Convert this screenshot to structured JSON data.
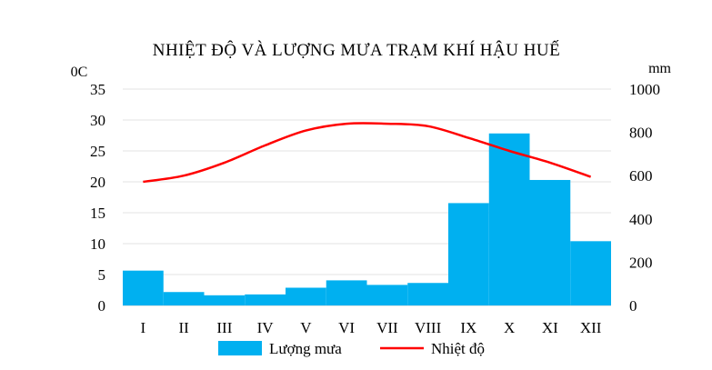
{
  "chart_data": {
    "type": "bar",
    "title": "NHIỆT ĐỘ VÀ LƯỢNG MƯA TRẠM KHÍ HẬU HUẾ",
    "categories": [
      "I",
      "II",
      "III",
      "IV",
      "V",
      "VI",
      "VII",
      "VIII",
      "IX",
      "X",
      "XI",
      "XII"
    ],
    "y_left": {
      "label": "0C",
      "ticks": [
        "0",
        "5",
        "10",
        "15",
        "20",
        "25",
        "30",
        "35"
      ],
      "range": [
        0,
        35
      ]
    },
    "y_right": {
      "label": "mm",
      "ticks": [
        "0",
        "200",
        "400",
        "600",
        "800",
        "1000"
      ],
      "range": [
        0,
        1000
      ]
    },
    "series": [
      {
        "name": "Lượng mưa",
        "type": "bar",
        "axis": "right",
        "color": "#00B0F0",
        "values": [
          161,
          62,
          47,
          51,
          82,
          116,
          95,
          104,
          473,
          795,
          580,
          297
        ]
      },
      {
        "name": "Nhiệt độ",
        "type": "line",
        "axis": "left",
        "color": "#FF0000",
        "values": [
          20.0,
          21.0,
          23.1,
          25.9,
          28.3,
          29.4,
          29.4,
          29.0,
          27.1,
          25.0,
          23.1,
          20.8
        ]
      }
    ],
    "grid": true,
    "legend": "bottom"
  }
}
